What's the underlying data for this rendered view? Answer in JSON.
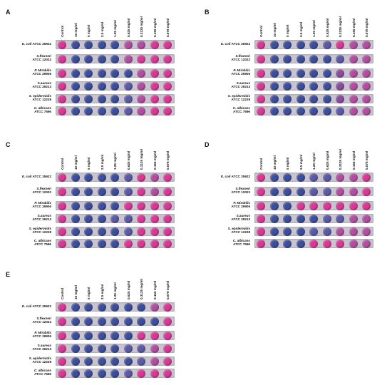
{
  "columns": [
    "Control",
    "10 mg/ml",
    "5 mg/ml",
    "2.5 mg/ml",
    "1.25 mg/ml",
    "0.625 mg/ml",
    "0.3125 mg/ml",
    "0.156 mg/ml",
    "0.078 mg/ml"
  ],
  "rows": [
    {
      "species": "E. coli",
      "strain": "ATCC 25922",
      "inline": true
    },
    {
      "species": "S.flexneri",
      "strain": "ATCC 12022",
      "inline": false
    },
    {
      "species": "P. Mirabilis",
      "strain": "ATCC 29906",
      "inline": false
    },
    {
      "species": "S.aureus",
      "strain": "ATCC 29213",
      "inline": false
    },
    {
      "species": "S. epidermidis",
      "strain": "ATCC 12228",
      "inline": false
    },
    {
      "species": "C. albicans",
      "strain": "ATCC 7596",
      "inline": false
    }
  ],
  "colors": {
    "P": "#d63a94",
    "p": "#b04fa0",
    "B": "#3d4e9a",
    "b": "#5a5aa6",
    "m": "#8a4c9e"
  },
  "panels": [
    {
      "label": "A",
      "wells": [
        "PBBBBppPP",
        "PBBBBpPPP",
        "PBBBBBpPP",
        "PBBBBbpPP",
        "PBBBBbpPP",
        "PBBBBbpPP"
      ]
    },
    {
      "label": "B",
      "wells": [
        "PBBBBbPpp",
        "PBBBBBbpp",
        "PBBBBBmpp",
        "PBBBBBmpp",
        "PBBBBBmpp",
        "PBBBBBbpp"
      ]
    },
    {
      "label": "C",
      "wells": [
        "PBBBBbPpP",
        "PBBBBbPpP",
        "PBBBBPPPP",
        "PBBBbbPPP",
        "PBBBBbPPP",
        "PBBBBPPPP"
      ]
    },
    {
      "label": "D",
      "wells": [
        "PBBBbbppP",
        "PBBBbbppP",
        "PBBPPPPPP",
        "PBBBBbbpp",
        "PBBBbbppp",
        "PBBBPPPpp"
      ]
    },
    {
      "label": "E",
      "wells": [
        "PBBBBBBpP",
        "PBBBBBBBP",
        "PBBBBBPPP",
        "PBBBBbbpP",
        "PBBBBBbpP",
        "PBBBBbPPP"
      ]
    }
  ]
}
